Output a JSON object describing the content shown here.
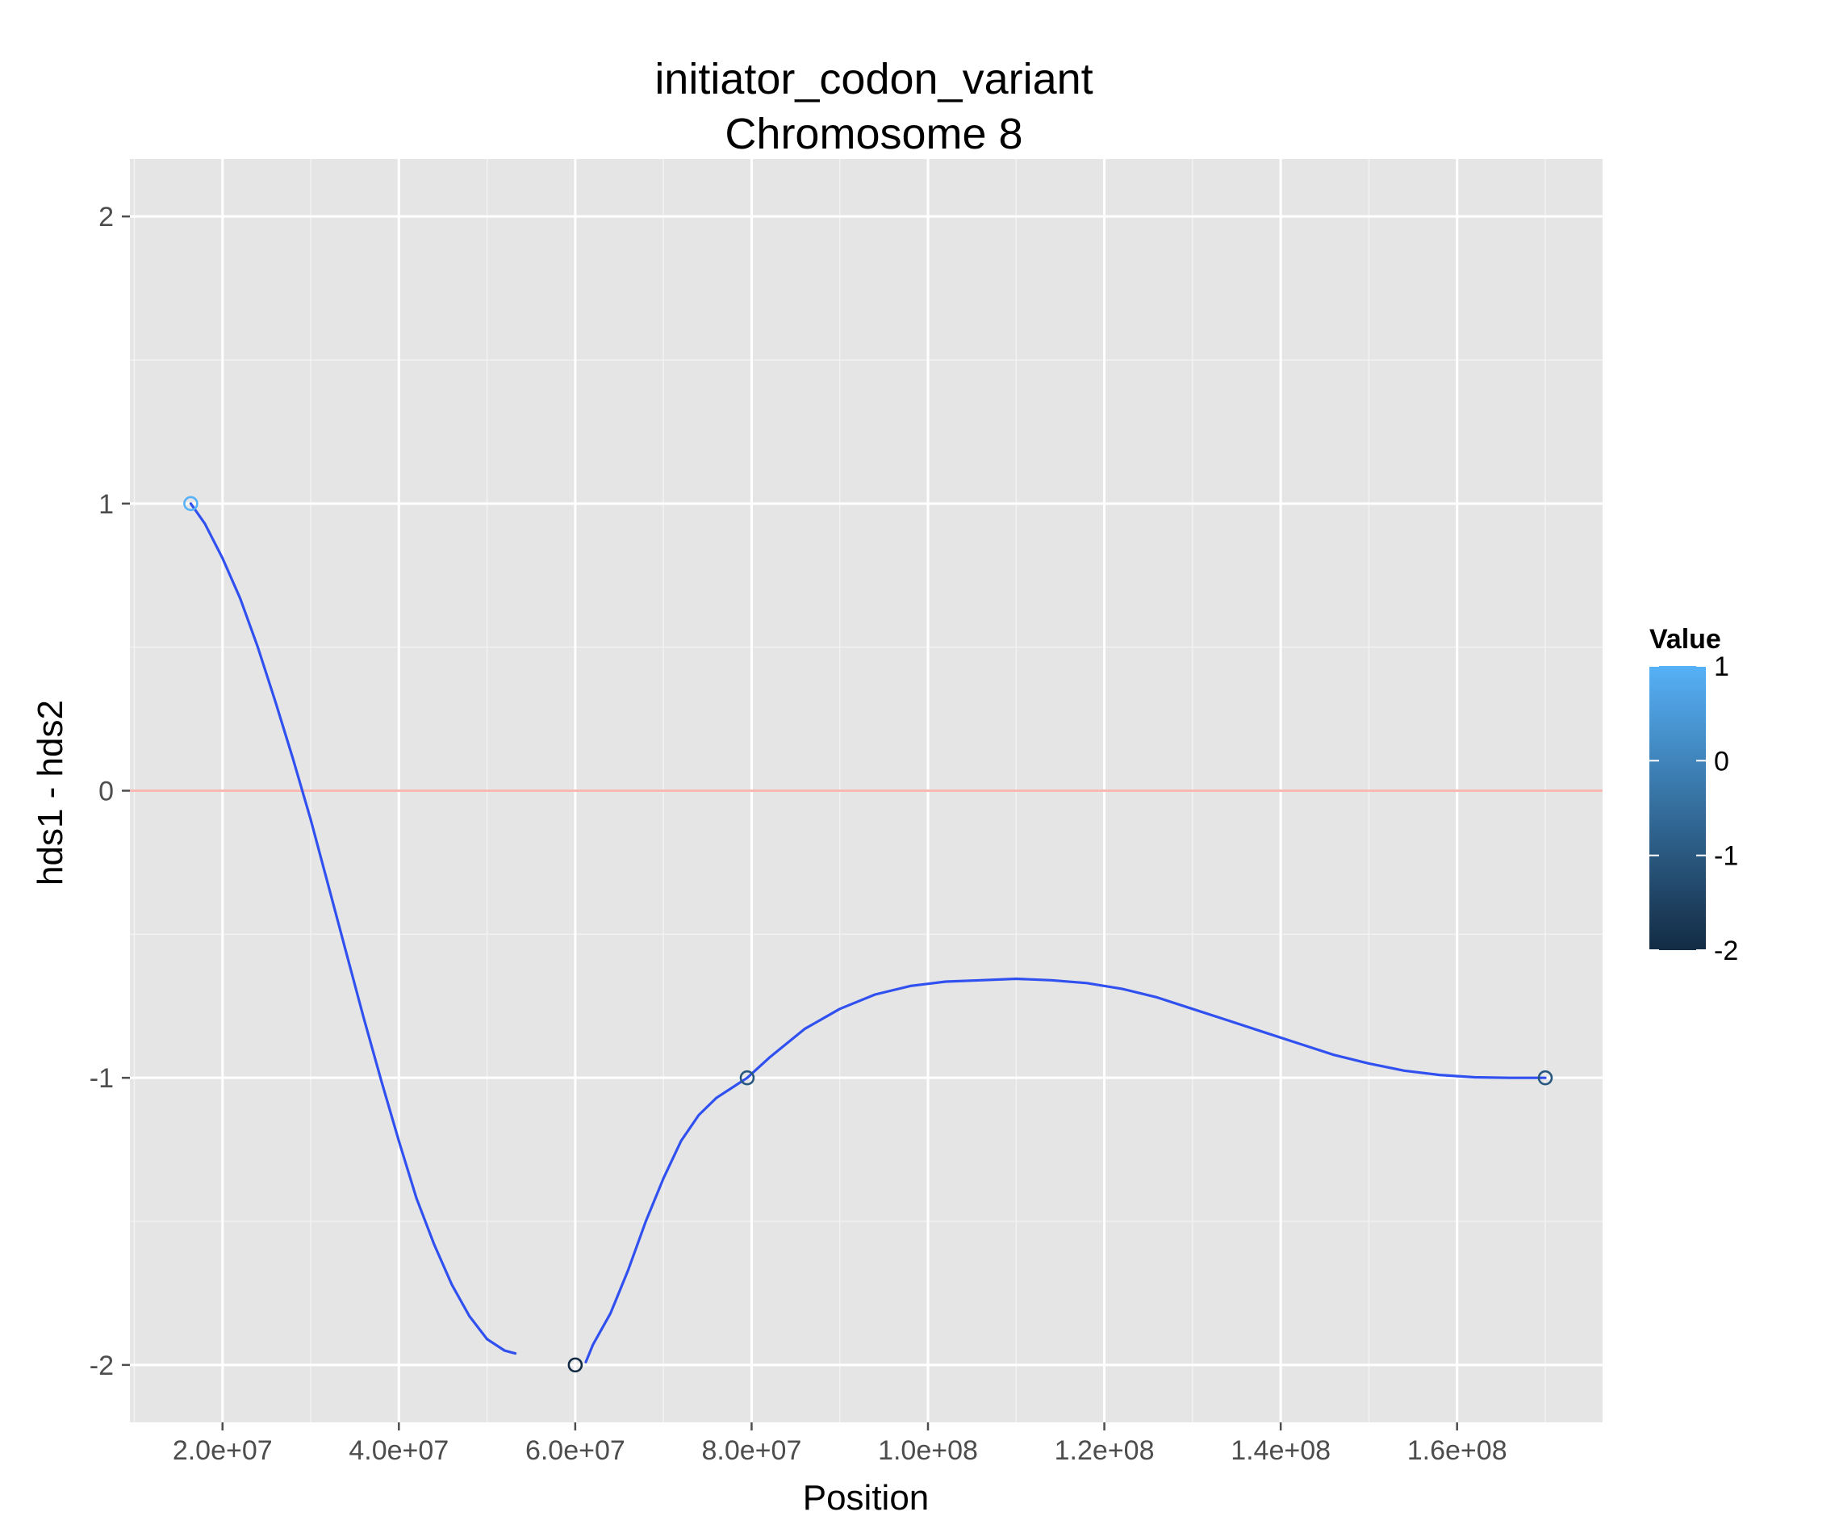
{
  "chart_data": {
    "type": "line",
    "title": "initiator_codon_variant",
    "subtitle": "Chromosome 8",
    "xlabel": "Position",
    "ylabel": "hds1 - hds2",
    "xlim": [
      9500000,
      176500000
    ],
    "ylim": [
      -2.2,
      2.2
    ],
    "x_ticks": [
      20000000,
      40000000,
      60000000,
      80000000,
      100000000,
      120000000,
      140000000,
      160000000
    ],
    "x_tick_labels": [
      "2.0e+07",
      "4.0e+07",
      "6.0e+07",
      "8.0e+07",
      "1.0e+08",
      "1.2e+08",
      "1.4e+08",
      "1.6e+08"
    ],
    "y_ticks": [
      -2,
      -1,
      0,
      1,
      2
    ],
    "y_tick_labels": [
      "-2",
      "-1",
      "0",
      "1",
      "2"
    ],
    "grid": true,
    "reference_line": {
      "y": 0,
      "color": "#F8B8B4"
    },
    "points": [
      {
        "x": 16400000,
        "y": 1,
        "value": 1
      },
      {
        "x": 60000000,
        "y": -2,
        "value": -2
      },
      {
        "x": 79500000,
        "y": -1,
        "value": -1
      },
      {
        "x": 170000000,
        "y": -1,
        "value": -1
      }
    ],
    "smooth_line": {
      "color": "#3050F0",
      "segments": [
        [
          [
            16400000,
            1.0
          ],
          [
            18000000,
            0.93
          ],
          [
            20000000,
            0.81
          ],
          [
            22000000,
            0.67
          ],
          [
            24000000,
            0.5
          ],
          [
            26000000,
            0.31
          ],
          [
            28000000,
            0.11
          ],
          [
            30000000,
            -0.1
          ],
          [
            32000000,
            -0.33
          ],
          [
            34000000,
            -0.56
          ],
          [
            36000000,
            -0.79
          ],
          [
            38000000,
            -1.01
          ],
          [
            40000000,
            -1.22
          ],
          [
            42000000,
            -1.42
          ],
          [
            44000000,
            -1.58
          ],
          [
            46000000,
            -1.72
          ],
          [
            48000000,
            -1.83
          ],
          [
            50000000,
            -1.91
          ],
          [
            52000000,
            -1.95
          ],
          [
            53200000,
            -1.96
          ]
        ],
        [
          [
            61200000,
            -1.99
          ],
          [
            62000000,
            -1.93
          ],
          [
            64000000,
            -1.82
          ],
          [
            66000000,
            -1.67
          ],
          [
            68000000,
            -1.5
          ],
          [
            70000000,
            -1.35
          ],
          [
            72000000,
            -1.22
          ],
          [
            74000000,
            -1.13
          ],
          [
            76000000,
            -1.07
          ],
          [
            78000000,
            -1.03
          ],
          [
            79500000,
            -1.0
          ],
          [
            82000000,
            -0.93
          ],
          [
            86000000,
            -0.83
          ],
          [
            90000000,
            -0.76
          ],
          [
            94000000,
            -0.71
          ],
          [
            98000000,
            -0.68
          ],
          [
            102000000,
            -0.665
          ],
          [
            106000000,
            -0.66
          ],
          [
            110000000,
            -0.655
          ],
          [
            114000000,
            -0.66
          ],
          [
            118000000,
            -0.67
          ],
          [
            122000000,
            -0.69
          ],
          [
            126000000,
            -0.72
          ],
          [
            130000000,
            -0.76
          ],
          [
            134000000,
            -0.8
          ],
          [
            138000000,
            -0.84
          ],
          [
            142000000,
            -0.88
          ],
          [
            146000000,
            -0.92
          ],
          [
            150000000,
            -0.95
          ],
          [
            154000000,
            -0.975
          ],
          [
            158000000,
            -0.99
          ],
          [
            162000000,
            -0.998
          ],
          [
            166000000,
            -1.0
          ],
          [
            170000000,
            -1.0
          ]
        ]
      ]
    },
    "legend": {
      "title": "Value",
      "type": "colorbar",
      "placement": "right",
      "range": [
        -2,
        1
      ],
      "labels": [
        "1",
        "0",
        "-1",
        "-2"
      ],
      "label_values": [
        1,
        0,
        -1,
        -2
      ],
      "color_low": "#132B43",
      "color_high": "#56B1F7"
    },
    "colors": {
      "panel_bg": "#E5E5E5",
      "grid_major": "#FFFFFF",
      "grid_minor": "#F2F2F2",
      "tick": "#4D4D4D"
    }
  }
}
